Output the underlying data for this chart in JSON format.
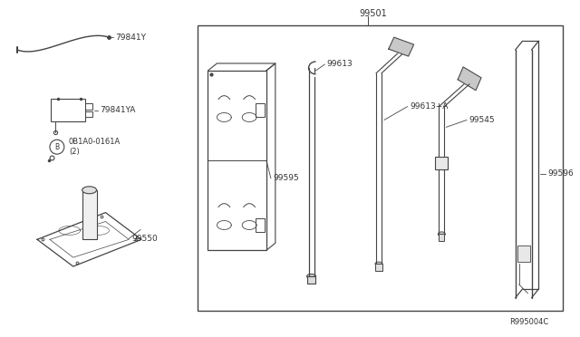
{
  "bg_color": "#ffffff",
  "line_color": "#444444",
  "ref_code": "R995004C",
  "part_label_99501": "99501",
  "part_label_99613": "99613",
  "part_label_99613A": "99613+A",
  "part_label_99595": "99595",
  "part_label_99545": "99545",
  "part_label_99596": "99596",
  "part_label_99550": "99550",
  "part_label_79841Y": "79841Y",
  "part_label_79841YA": "79841YA",
  "part_label_bolt": "0B1A0-0161A\n(2)",
  "figsize": [
    6.4,
    3.72
  ],
  "dpi": 100
}
